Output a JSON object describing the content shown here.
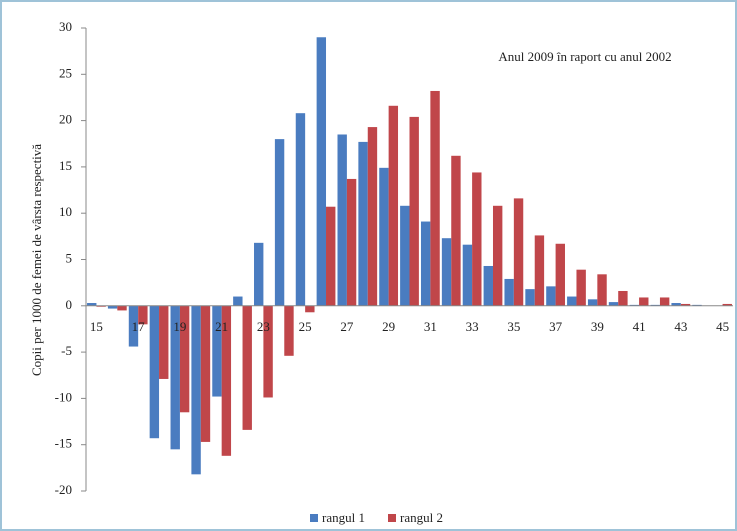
{
  "chart_data": {
    "type": "bar",
    "annotation": "Anul 2009 în raport cu anul 2002",
    "y_label": "Copii per 1000 de femei de vârsta respectivă",
    "categories": [
      "15",
      null,
      "17",
      null,
      "19",
      null,
      "21",
      null,
      "23",
      null,
      "25",
      null,
      "27",
      null,
      "29",
      null,
      "31",
      null,
      "33",
      null,
      "35",
      null,
      "37",
      null,
      "39",
      null,
      "41",
      null,
      "43",
      null,
      "45"
    ],
    "series": [
      {
        "name": "rangul 1",
        "color": "#4a7cc0",
        "values": [
          0.3,
          -0.3,
          -4.4,
          -14.3,
          -15.5,
          -18.2,
          -9.8,
          1.0,
          6.8,
          18.0,
          20.8,
          29.0,
          18.5,
          17.7,
          14.9,
          10.8,
          9.1,
          7.3,
          6.6,
          4.3,
          2.9,
          1.8,
          2.1,
          1.0,
          0.7,
          0.4,
          0.1,
          0.1,
          0.3,
          0.1,
          0.0
        ]
      },
      {
        "name": "rangul 2",
        "color": "#c0464a",
        "values": [
          -0.1,
          -0.5,
          -2.0,
          -7.9,
          -11.5,
          -14.7,
          -16.2,
          -13.4,
          -9.9,
          -5.4,
          -0.7,
          10.7,
          13.7,
          19.3,
          21.6,
          20.4,
          23.2,
          16.2,
          14.4,
          10.8,
          11.6,
          7.6,
          6.7,
          3.9,
          3.4,
          1.6,
          0.9,
          0.9,
          0.2,
          0.0,
          0.2
        ]
      }
    ],
    "ylim": [
      -20,
      30
    ],
    "yticks": [
      -20,
      -15,
      -10,
      -5,
      0,
      5,
      10,
      15,
      20,
      25,
      30
    ],
    "grid": false,
    "legend": "bottom"
  }
}
